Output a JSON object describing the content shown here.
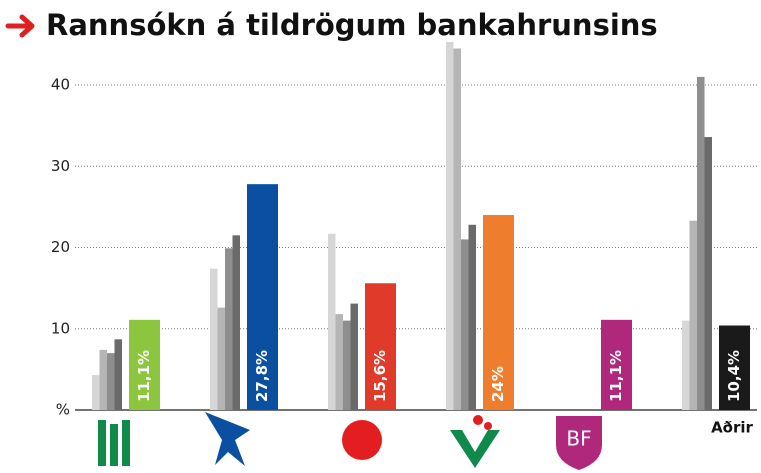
{
  "chart_data": {
    "type": "bar",
    "title": "Rannsókn á tildrögum bankahrunsins",
    "categories": [
      null,
      null,
      null,
      null,
      null,
      "Aðrir"
    ],
    "logo_labels": [
      null,
      null,
      null,
      null,
      "BF",
      null
    ],
    "ylim": [
      0,
      45.3
    ],
    "yticks": [
      {
        "value": 0,
        "label": "%"
      },
      10,
      20,
      30,
      40
    ],
    "grid": true,
    "series": [
      {
        "color": "#d6d6d6",
        "values": [
          4.3,
          17.4,
          21.7,
          45.3,
          null,
          11.0
        ]
      },
      {
        "color": "#b5b5b5",
        "values": [
          7.4,
          12.6,
          11.8,
          44.5,
          null,
          23.3
        ]
      },
      {
        "color": "#8e8e8e",
        "values": [
          7.0,
          19.9,
          11.0,
          21.0,
          null,
          41.0
        ]
      },
      {
        "color": "#6a6a6a",
        "values": [
          8.7,
          21.5,
          13.1,
          22.8,
          null,
          33.6
        ]
      },
      {
        "colors": [
          "#8cc63f",
          "#0a4fa0",
          "#e03a2b",
          "#ef7d2e",
          "#b0287c",
          "#1a1a1a"
        ],
        "values": [
          11.1,
          27.8,
          15.6,
          24,
          11.1,
          10.4
        ],
        "value_labels": [
          "11,1%",
          "27,8%",
          "15,6%",
          "24%",
          "11,1%",
          "10,4%"
        ]
      }
    ]
  }
}
